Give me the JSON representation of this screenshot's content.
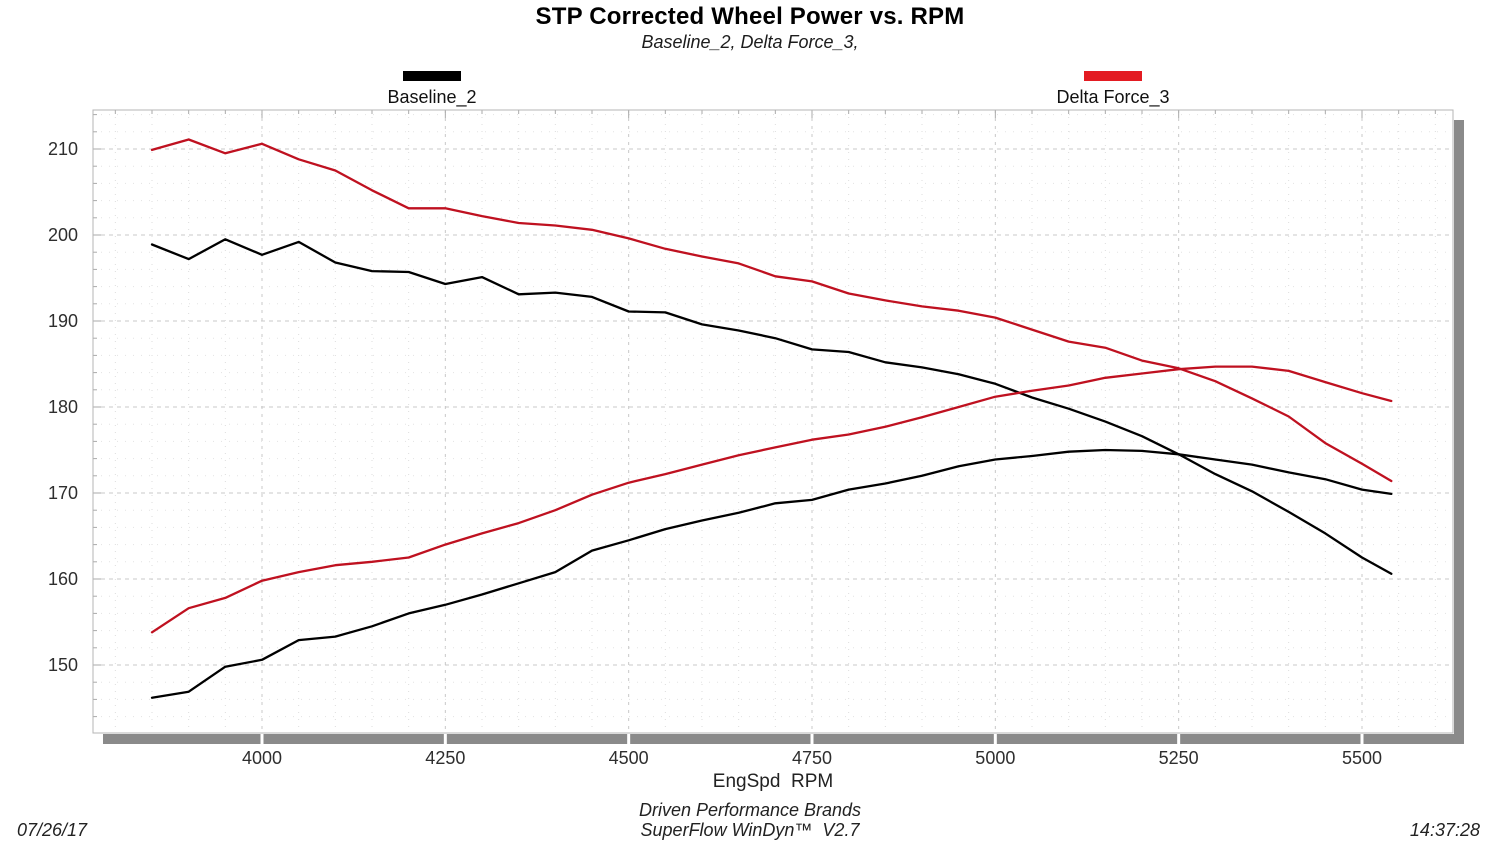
{
  "title": "STP Corrected Wheel Power vs. RPM",
  "subtitle": "Baseline_2,  Delta Force_3,",
  "legend": [
    {
      "label": "Baseline_2",
      "color": "#000000"
    },
    {
      "label": "Delta Force_3",
      "color": "#e31b22"
    }
  ],
  "axes": {
    "xlabel": "EngSpd  RPM",
    "ylabel": ""
  },
  "footer": {
    "date": "07/26/17",
    "center_line1": "Driven Performance Brands",
    "center_line2": "SuperFlow WinDyn™  V2.7",
    "time": "14:37:28"
  },
  "chart_data": {
    "type": "line",
    "title": "STP Corrected Wheel Power vs. RPM",
    "subtitle": "Baseline_2, Delta Force_3,",
    "xlabel": "EngSpd  RPM",
    "ylabel": "",
    "xlim": [
      3769,
      5624
    ],
    "ylim": [
      142,
      214.5
    ],
    "x_ticks": [
      4000,
      4250,
      4500,
      4750,
      5000,
      5250,
      5500
    ],
    "y_ticks": [
      150,
      160,
      170,
      180,
      190,
      200,
      210
    ],
    "grid": "dotted; major x every 250 RPM, minor x every 50 RPM, major y every 10, minor y every 2",
    "legend_position": "top, outside plot",
    "x": [
      3850,
      3900,
      3950,
      4000,
      4050,
      4100,
      4150,
      4200,
      4250,
      4300,
      4350,
      4400,
      4450,
      4500,
      4550,
      4600,
      4650,
      4700,
      4750,
      4800,
      4850,
      4900,
      4950,
      5000,
      5050,
      5100,
      5150,
      5200,
      5250,
      5300,
      5350,
      5400,
      5450,
      5500,
      5540
    ],
    "series": [
      {
        "name": "Baseline_2 (black, upper/descending curve)",
        "run": "Baseline_2",
        "color": "#000000",
        "values": [
          198.9,
          197.2,
          199.5,
          197.7,
          199.2,
          196.8,
          195.8,
          195.7,
          194.3,
          195.1,
          193.1,
          193.3,
          192.8,
          191.1,
          191.0,
          189.6,
          188.9,
          188.0,
          186.7,
          186.4,
          185.2,
          184.6,
          183.8,
          182.7,
          181.1,
          179.8,
          178.3,
          176.6,
          174.5,
          172.2,
          170.2,
          167.8,
          165.3,
          162.5,
          160.6
        ]
      },
      {
        "name": "Baseline_2 (black, lower/rising power curve)",
        "run": "Baseline_2",
        "color": "#000000",
        "values": [
          146.2,
          146.9,
          149.8,
          150.6,
          152.9,
          153.3,
          154.5,
          156.0,
          157.0,
          158.2,
          159.5,
          160.8,
          163.3,
          164.5,
          165.8,
          166.8,
          167.7,
          168.8,
          169.2,
          170.4,
          171.1,
          172.0,
          173.1,
          173.9,
          174.3,
          174.8,
          175.0,
          174.9,
          174.5,
          173.9,
          173.3,
          172.4,
          171.6,
          170.4,
          169.9
        ]
      },
      {
        "name": "Delta Force_3 (red, upper/descending curve)",
        "run": "Delta Force_3",
        "color": "#bf1120",
        "values": [
          209.9,
          211.1,
          209.5,
          210.6,
          208.8,
          207.5,
          205.2,
          203.1,
          203.1,
          202.2,
          201.4,
          201.1,
          200.6,
          199.6,
          198.4,
          197.5,
          196.7,
          195.2,
          194.6,
          193.2,
          192.4,
          191.7,
          191.2,
          190.4,
          189.0,
          187.6,
          186.9,
          185.4,
          184.5,
          183.0,
          181.0,
          178.9,
          175.8,
          173.4,
          171.4
        ]
      },
      {
        "name": "Delta Force_3 (red, lower/rising power curve)",
        "run": "Delta Force_3",
        "color": "#bf1120",
        "values": [
          153.8,
          156.6,
          157.8,
          159.8,
          160.8,
          161.6,
          162.0,
          162.5,
          164.0,
          165.3,
          166.5,
          168.0,
          169.8,
          171.2,
          172.2,
          173.3,
          174.4,
          175.3,
          176.2,
          176.8,
          177.7,
          178.8,
          180.0,
          181.2,
          181.9,
          182.5,
          183.4,
          183.9,
          184.4,
          184.7,
          184.7,
          184.2,
          182.9,
          181.6,
          180.7
        ]
      }
    ]
  }
}
